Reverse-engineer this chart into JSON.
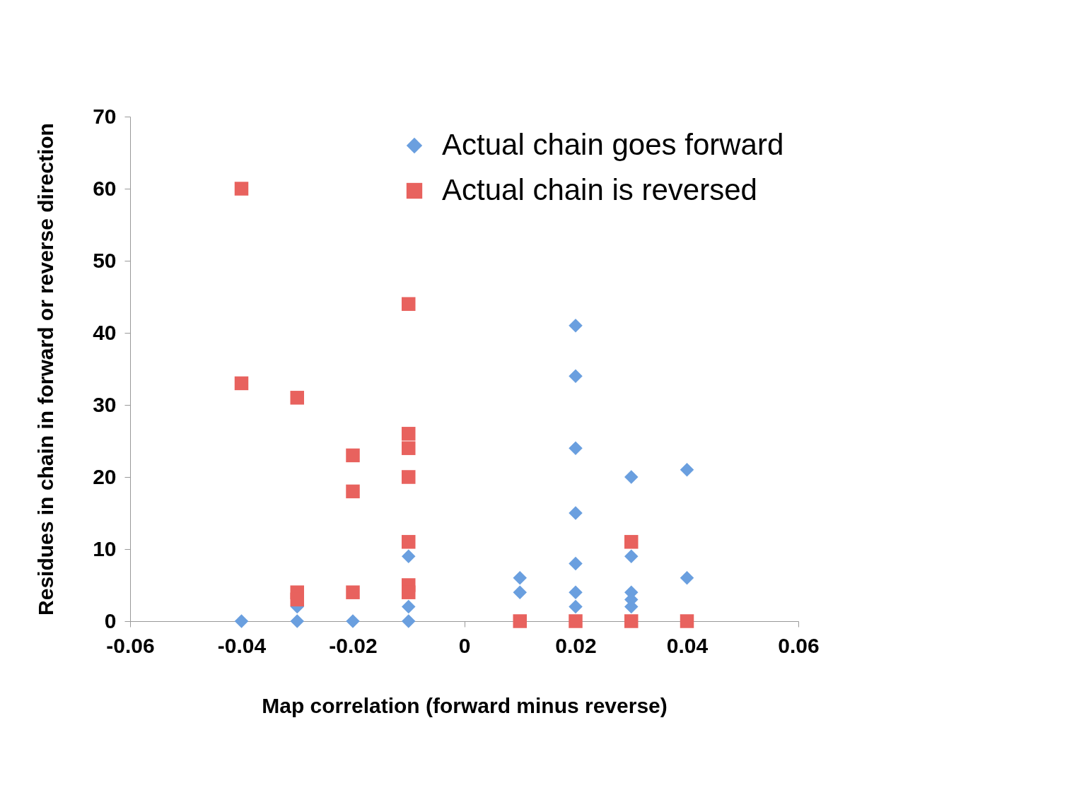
{
  "chart_data": {
    "type": "scatter",
    "xlabel": "Map correlation (forward minus reverse)",
    "ylabel": "Residues in chain in forward or reverse direction",
    "xlim": [
      -0.06,
      0.06
    ],
    "xticks": [
      -0.06,
      -0.04,
      -0.02,
      0,
      0.02,
      0.04,
      0.06
    ],
    "ylim": [
      0,
      70
    ],
    "yticks": [
      0,
      10,
      20,
      30,
      40,
      50,
      60,
      70
    ],
    "grid": false,
    "legend": "top right",
    "series": [
      {
        "name": "Actual chain goes forward",
        "color": "#6a9fdf",
        "marker": "diamond",
        "x": [
          -0.04,
          -0.03,
          -0.03,
          -0.02,
          -0.01,
          -0.01,
          -0.01,
          0.01,
          0.01,
          0.02,
          0.02,
          0.02,
          0.02,
          0.02,
          0.02,
          0.02,
          0.03,
          0.03,
          0.03,
          0.03,
          0.03,
          0.04,
          0.04
        ],
        "values": [
          0,
          0,
          2,
          0,
          0,
          2,
          9,
          4,
          6,
          41,
          34,
          24,
          15,
          8,
          4,
          2,
          20,
          9,
          4,
          3,
          2,
          21,
          6
        ]
      },
      {
        "name": "Actual chain is reversed",
        "color": "#e8625e",
        "marker": "square",
        "x": [
          -0.04,
          -0.04,
          -0.03,
          -0.03,
          -0.03,
          -0.02,
          -0.02,
          -0.02,
          -0.01,
          -0.01,
          -0.01,
          -0.01,
          -0.01,
          -0.01,
          -0.01,
          0.01,
          0.02,
          0.03,
          0.03,
          0.04
        ],
        "values": [
          60,
          33,
          31,
          4,
          3,
          23,
          18,
          4,
          44,
          26,
          24,
          20,
          11,
          5,
          4,
          0,
          0,
          11,
          0,
          0
        ]
      }
    ]
  }
}
